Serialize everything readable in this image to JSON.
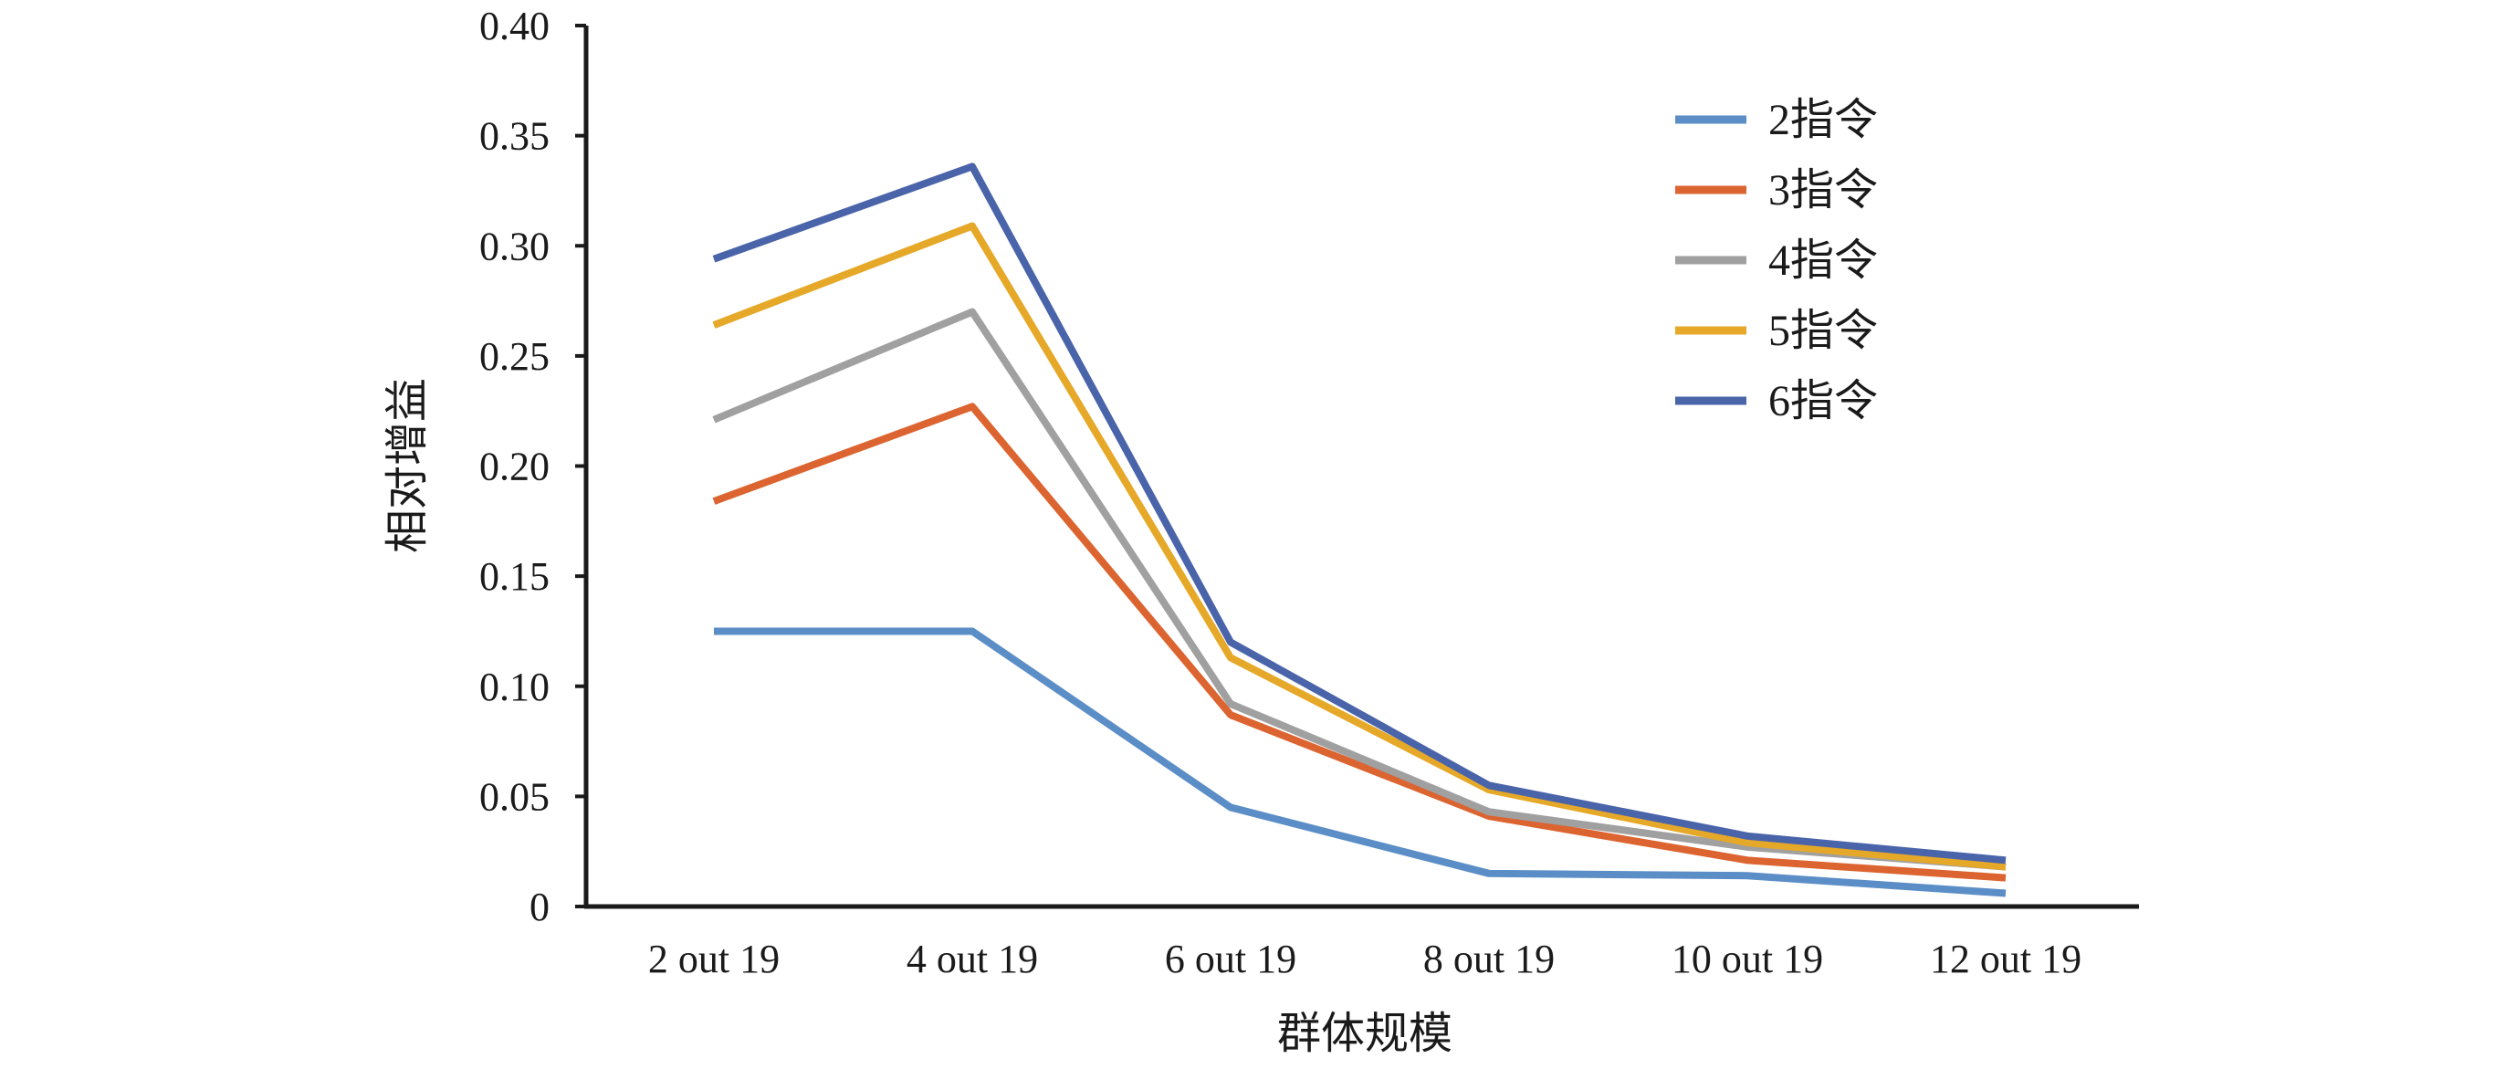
{
  "chart_data": {
    "type": "line",
    "title": "",
    "xlabel": "群体规模",
    "ylabel": "相对增益",
    "categories": [
      "2 out 19",
      "4 out 19",
      "6 out 19",
      "8 out 19",
      "10 out 19",
      "12 out 19"
    ],
    "ylim": [
      0,
      0.4
    ],
    "yticks": [
      "0",
      "0.05",
      "0.10",
      "0.15",
      "0.20",
      "0.25",
      "0.30",
      "0.35",
      "0.40"
    ],
    "grid": false,
    "legend_position": "top-right",
    "series": [
      {
        "name": "2指令",
        "color": "#5b8ec6",
        "values": [
          0.125,
          0.125,
          0.045,
          0.015,
          0.014,
          0.006
        ]
      },
      {
        "name": "3指令",
        "color": "#dc6430",
        "values": [
          0.184,
          0.227,
          0.087,
          0.041,
          0.021,
          0.013
        ]
      },
      {
        "name": "4指令",
        "color": "#a0a0a0",
        "values": [
          0.221,
          0.27,
          0.092,
          0.043,
          0.027,
          0.018
        ]
      },
      {
        "name": "5指令",
        "color": "#e6a828",
        "values": [
          0.264,
          0.309,
          0.113,
          0.053,
          0.029,
          0.018
        ]
      },
      {
        "name": "6指令",
        "color": "#4a64aa",
        "values": [
          0.294,
          0.336,
          0.12,
          0.055,
          0.032,
          0.021
        ]
      }
    ]
  }
}
